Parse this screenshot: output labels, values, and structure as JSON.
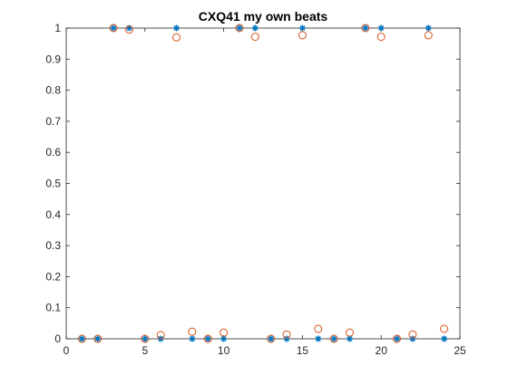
{
  "chart_data": {
    "type": "scatter",
    "title": "CXQ41 my own beats",
    "xlabel": "",
    "ylabel": "",
    "xlim": [
      0,
      25
    ],
    "ylim": [
      0,
      1
    ],
    "xticks": [
      0,
      5,
      10,
      15,
      20,
      25
    ],
    "yticks": [
      0,
      0.1,
      0.2,
      0.3,
      0.4,
      0.5,
      0.6,
      0.7,
      0.8,
      0.9,
      1
    ],
    "grid": false,
    "legend": "none",
    "series": [
      {
        "marker": "asterisk",
        "color": "#0072BD",
        "x": [
          1,
          2,
          3,
          4,
          5,
          6,
          7,
          8,
          9,
          10,
          11,
          12,
          13,
          14,
          15,
          16,
          17,
          18,
          19,
          20,
          21,
          22,
          23,
          24
        ],
        "y": [
          0,
          0,
          1,
          1,
          0,
          0,
          1,
          0,
          0,
          0,
          1,
          1,
          0,
          0,
          1,
          0,
          0,
          0,
          1,
          1,
          0,
          0,
          1,
          0
        ]
      },
      {
        "marker": "circle",
        "color": "#D95319",
        "x": [
          1,
          2,
          3,
          4,
          5,
          6,
          7,
          8,
          9,
          10,
          11,
          12,
          13,
          14,
          15,
          16,
          17,
          18,
          19,
          20,
          21,
          22,
          23,
          24
        ],
        "y": [
          0.0,
          0.0,
          1.0,
          0.995,
          0.0,
          0.012,
          0.97,
          0.023,
          0.0,
          0.02,
          1.0,
          0.972,
          0.0,
          0.014,
          0.977,
          0.032,
          0.0,
          0.02,
          1.0,
          0.972,
          0.0,
          0.014,
          0.977,
          0.032
        ]
      }
    ]
  }
}
